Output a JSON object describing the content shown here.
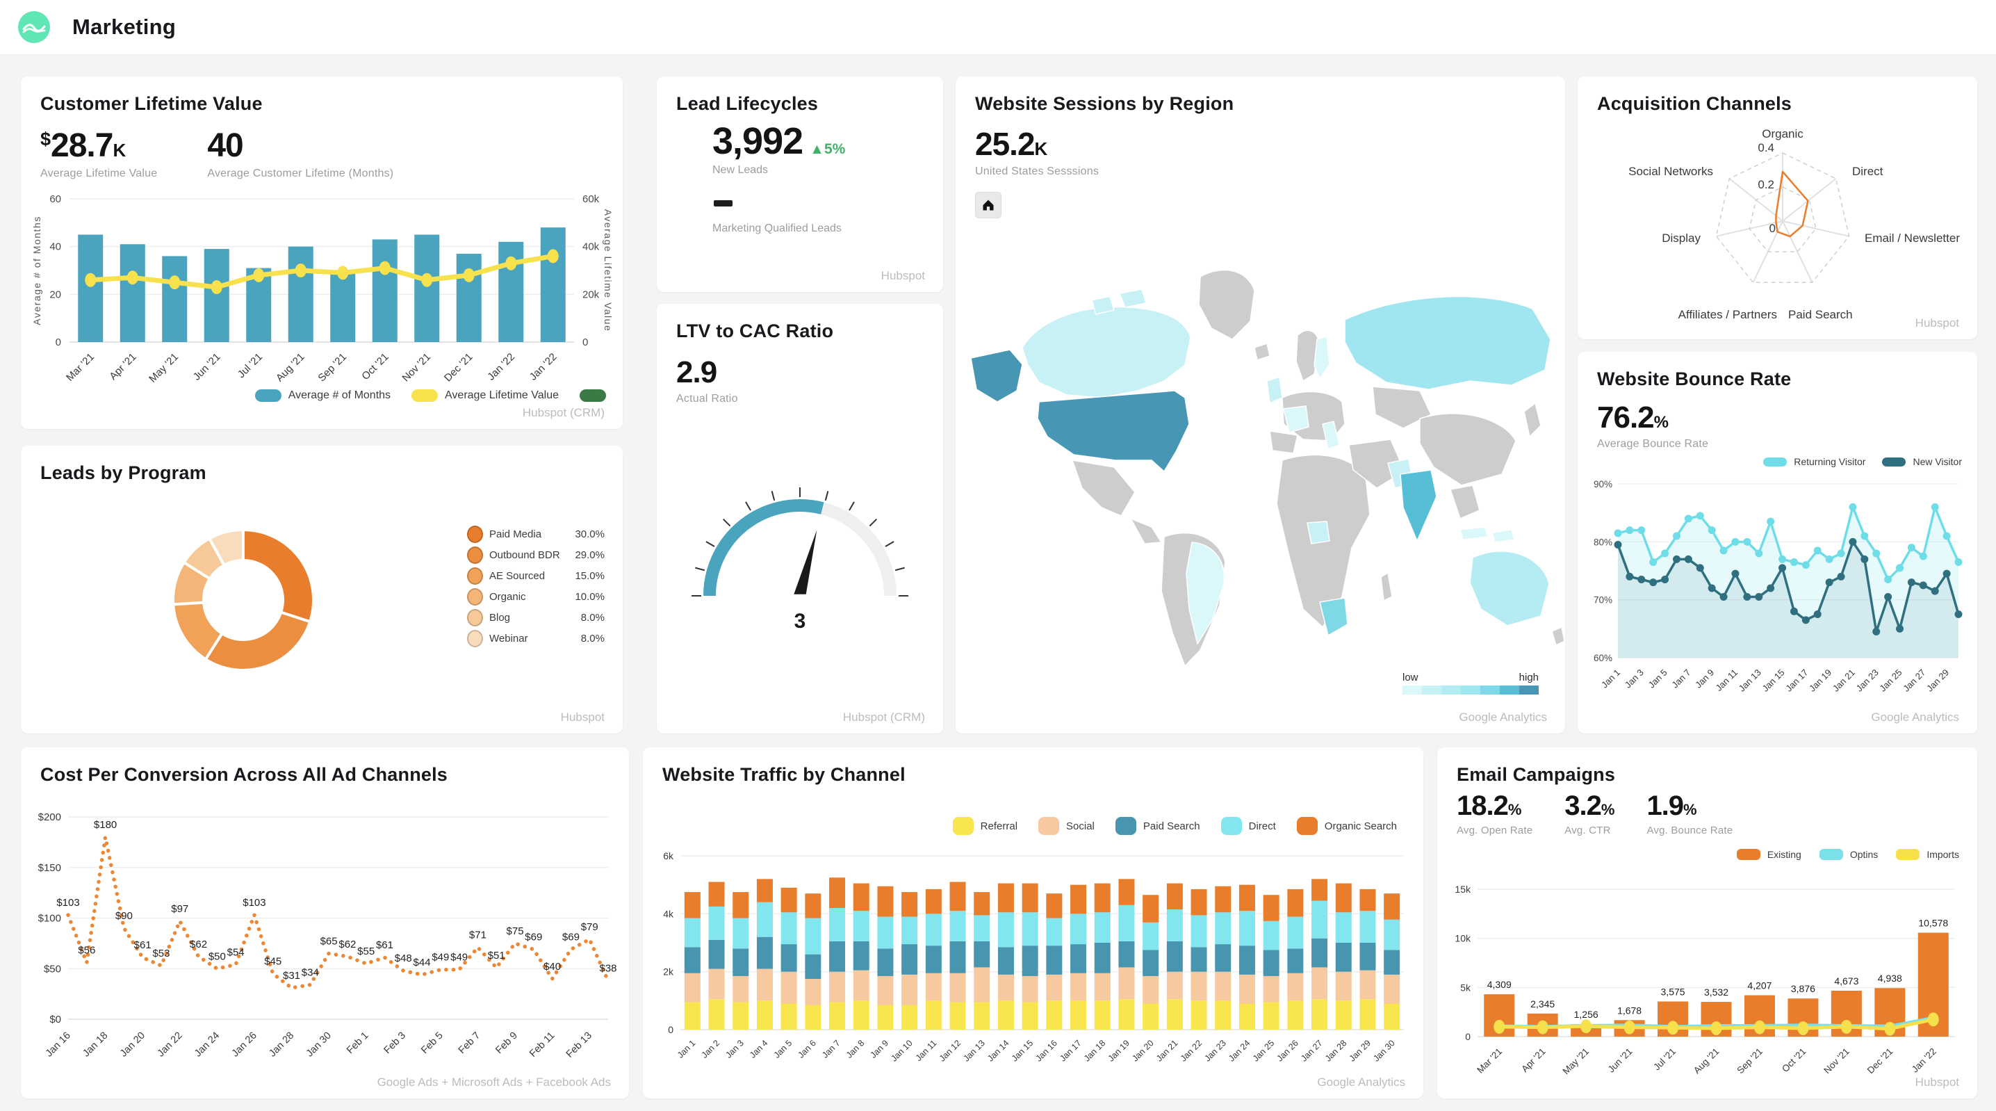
{
  "header": {
    "title": "Marketing"
  },
  "panels": {
    "clv": {
      "title": "Customer Lifetime Value",
      "kpis": [
        {
          "prefix": "$",
          "value": "28.7",
          "suffix": "K",
          "label": "Average Lifetime Value"
        },
        {
          "prefix": "",
          "value": "40",
          "suffix": "",
          "label": "Average Customer Lifetime (Months)"
        }
      ],
      "source": "Hubspot (CRM)"
    },
    "leads_program": {
      "title": "Leads by Program",
      "source": "Hubspot"
    },
    "lead_lifecycles": {
      "title": "Lead Lifecycles",
      "kpi": {
        "value": "3,992",
        "delta_icon": "▲",
        "delta": "5%",
        "label": "New Leads"
      },
      "mql_label": "Marketing Qualified Leads",
      "source": "Hubspot"
    },
    "ltv": {
      "title": "LTV to CAC Ratio",
      "kpi": {
        "value": "2.9",
        "label": "Actual Ratio"
      },
      "source": "Hubspot (CRM)"
    },
    "map": {
      "title": "Website Sessions by Region",
      "kpi": {
        "value": "25.2",
        "suffix": "K",
        "label": "United States Sesssions"
      },
      "legend": {
        "low": "low",
        "high": "high"
      },
      "source": "Google Analytics"
    },
    "acquisition": {
      "title": "Acquisition Channels",
      "source": "Hubspot"
    },
    "bounce": {
      "title": "Website Bounce Rate",
      "kpi": {
        "value": "76.2",
        "suffix": "%",
        "label": "Average Bounce Rate"
      },
      "source": "Google Analytics"
    },
    "cost": {
      "title": "Cost Per Conversion Across All Ad Channels",
      "source": "Google Ads + Microsoft Ads + Facebook Ads"
    },
    "traffic": {
      "title": "Website Traffic by Channel",
      "source": "Google Analytics"
    },
    "email": {
      "title": "Email Campaigns",
      "kpis": [
        {
          "value": "18.2",
          "suffix": "%",
          "label": "Avg. Open Rate"
        },
        {
          "value": "3.2",
          "suffix": "%",
          "label": "Avg. CTR"
        },
        {
          "value": "1.9",
          "suffix": "%",
          "label": "Avg. Bounce Rate"
        }
      ],
      "source": "Hubspot"
    }
  },
  "chart_data": [
    {
      "id": "clv",
      "type": "bar",
      "subtype": "bar+line dual axis",
      "title": "Customer Lifetime Value",
      "categories": [
        "Mar '21",
        "Apr '21",
        "May '21",
        "Jun '21",
        "Jul '21",
        "Aug '21",
        "Sep '21",
        "Oct '21",
        "Nov '21",
        "Dec '21",
        "Jan '22",
        "Jan '22"
      ],
      "series": [
        {
          "name": "Average # of Months",
          "type": "bar",
          "axis": "left",
          "color": "#4aa4be",
          "values": [
            45,
            41,
            36,
            39,
            31,
            40,
            30,
            43,
            45,
            37,
            42,
            48
          ]
        },
        {
          "name": "Average Lifetime Value",
          "type": "line",
          "axis": "right",
          "color": "#f7e14d",
          "values": [
            26000,
            27000,
            25000,
            23000,
            28000,
            30000,
            29000,
            31000,
            26000,
            28000,
            33000,
            36000
          ]
        },
        {
          "name": "",
          "type": "line",
          "axis": "right",
          "color": "#3c7a45",
          "values": []
        }
      ],
      "axes": {
        "left": {
          "label": "Average # of Months",
          "ticks": [
            "0",
            "20",
            "40",
            "60"
          ],
          "max": 60
        },
        "right": {
          "label": "Average Lifetime Value",
          "ticks": [
            "0",
            "20k",
            "40k",
            "60k"
          ],
          "max": 60000
        }
      },
      "legend_position": "bottom-right"
    },
    {
      "id": "leads_program",
      "type": "pie",
      "subtype": "donut",
      "title": "Leads by Program",
      "labels": [
        "Paid Media",
        "Outbound BDR",
        "AE Sourced",
        "Organic",
        "Blog",
        "Webinar"
      ],
      "values": [
        30.0,
        29.0,
        15.0,
        10.0,
        8.0,
        8.0
      ],
      "value_labels": [
        "30.0%",
        "29.0%",
        "15.0%",
        "10.0%",
        "8.0%",
        "8.0%"
      ],
      "colors": [
        "#e87d2b",
        "#eb8e3f",
        "#efa258",
        "#f3b678",
        "#f6c998",
        "#f9dcbb"
      ]
    },
    {
      "id": "ltv_gauge",
      "type": "gauge",
      "title": "LTV to CAC Ratio",
      "value": 2.9,
      "min": 0,
      "max": 5,
      "tick_label": "3",
      "color": "#4aa4be",
      "track_color": "#efefef"
    },
    {
      "id": "sessions_map",
      "type": "heatmap",
      "subtype": "world choropleth",
      "title": "Website Sessions by Region",
      "kpi": {
        "value": "25.2K",
        "label": "United States Sesssions"
      },
      "scale": {
        "low_label": "low",
        "high_label": "high",
        "colors": [
          "#daf7f9",
          "#c8f1f6",
          "#b5ecf3",
          "#9fe6f0",
          "#7fd8e5",
          "#57bfd5",
          "#4796b4"
        ]
      },
      "base_color": "#cdcdcd",
      "regions": {
        "united-states": "high",
        "alaska": "high",
        "canada": "low",
        "canada-islands-a": "low",
        "canada-islands-b": "low",
        "russia": "medium-low",
        "india": "medium",
        "south-africa": "medium-high-low",
        "australia": "low-medium",
        "brazil": "lowest",
        "sweden": "lowest",
        "france": "lowest",
        "italy": "lowest",
        "united-kingdom": "low",
        "nigeria": "low",
        "pakistan": "low",
        "indonesia": "lowest",
        "indonesia-b": "lowest"
      }
    },
    {
      "id": "acquisition",
      "type": "radar",
      "title": "Acquisition Channels",
      "axes": [
        "Organic",
        "Direct",
        "Email / Newsletter",
        "Paid Search",
        "Affiliates / Partners",
        "Display",
        "Social Networks"
      ],
      "values": [
        0.29,
        0.19,
        0.12,
        0.1,
        0.07,
        0.04,
        0.05
      ],
      "ticks": [
        "0",
        "0.2",
        "0.4"
      ],
      "max": 0.4,
      "color": "#e87d2b"
    },
    {
      "id": "bounce",
      "type": "line",
      "title": "Website Bounce Rate",
      "x": [
        "Jan 1",
        "Jan 2",
        "Jan 3",
        "Jan 4",
        "Jan 5",
        "Jan 6",
        "Jan 7",
        "Jan 8",
        "Jan 9",
        "Jan 10",
        "Jan 11",
        "Jan 12",
        "Jan 13",
        "Jan 14",
        "Jan 15",
        "Jan 16",
        "Jan 17",
        "Jan 18",
        "Jan 19",
        "Jan 20",
        "Jan 21",
        "Jan 22",
        "Jan 23",
        "Jan 24",
        "Jan 25",
        "Jan 26",
        "Jan 27",
        "Jan 28",
        "Jan 29",
        "Jan 30"
      ],
      "x_tick_every": 2,
      "ylim": [
        60,
        90
      ],
      "yticks": [
        "60%",
        "70%",
        "80%",
        "90%"
      ],
      "series": [
        {
          "name": "Returning Visitor",
          "color": "#6fdde7",
          "values": [
            81.5,
            82,
            82,
            76.5,
            78,
            81,
            84,
            84.5,
            82,
            78.5,
            80,
            80,
            78,
            83.5,
            77,
            76.5,
            76,
            78.5,
            77,
            78,
            86,
            81,
            78,
            73.5,
            75.5,
            79,
            77.5,
            86,
            81,
            76.5
          ]
        },
        {
          "name": "New Visitor",
          "color": "#2f6f7f",
          "values": [
            79.5,
            74,
            73.5,
            73,
            73.5,
            77,
            77,
            75.5,
            72,
            70.5,
            74.5,
            70.5,
            70.5,
            72,
            75.5,
            68,
            66.5,
            67.5,
            73,
            74,
            80,
            77,
            64.5,
            70.5,
            65,
            73,
            72.5,
            71.5,
            74.5,
            67.5
          ]
        }
      ]
    },
    {
      "id": "cost",
      "type": "line",
      "subtype": "dotted",
      "title": "Cost Per Conversion Across All Ad Channels",
      "color": "#ec8733",
      "x": [
        "Jan 16",
        "Jan 17",
        "Jan 18",
        "Jan 19",
        "Jan 20",
        "Jan 21",
        "Jan 22",
        "Jan 23",
        "Jan 24",
        "Jan 25",
        "Jan 26",
        "Jan 27",
        "Jan 28",
        "Jan 29",
        "Jan 30",
        "Jan 31",
        "Feb 1",
        "Feb 2",
        "Feb 3",
        "Feb 4",
        "Feb 5",
        "Feb 6",
        "Feb 7",
        "Feb 8",
        "Feb 9",
        "Feb 10",
        "Feb 11",
        "Feb 12",
        "Feb 13",
        "Feb 14"
      ],
      "x_tick_every": 2,
      "values": [
        103,
        56,
        180,
        90,
        61,
        53,
        97,
        62,
        50,
        54,
        103,
        45,
        31,
        34,
        65,
        62,
        55,
        61,
        48,
        44,
        49,
        49,
        71,
        51,
        75,
        69,
        40,
        69,
        79,
        38
      ],
      "point_labels": [
        "$103",
        "$56",
        "$180",
        "$90",
        "$61",
        "$53",
        "$97",
        "$62",
        "$50",
        "$54",
        "$103",
        "$45",
        "$31",
        "$34",
        "$65",
        "$62",
        "$55",
        "$61",
        "$48",
        "$44",
        "$49",
        "$49",
        "$71",
        "$51",
        "$75",
        "$69",
        "$40",
        "$69",
        "$79",
        "$38"
      ],
      "ylim": [
        0,
        200
      ],
      "yticks": [
        "$0",
        "$50",
        "$100",
        "$150",
        "$200"
      ]
    },
    {
      "id": "traffic",
      "type": "bar",
      "subtype": "stacked",
      "title": "Website Traffic by Channel",
      "x": [
        "Jan 1",
        "Jan 2",
        "Jan 3",
        "Jan 4",
        "Jan 5",
        "Jan 6",
        "Jan 7",
        "Jan 8",
        "Jan 9",
        "Jan 10",
        "Jan 11",
        "Jan 12",
        "Jan 13",
        "Jan 14",
        "Jan 15",
        "Jan 16",
        "Jan 17",
        "Jan 18",
        "Jan 19",
        "Jan 20",
        "Jan 21",
        "Jan 22",
        "Jan 23",
        "Jan 24",
        "Jan 25",
        "Jan 26",
        "Jan 27",
        "Jan 28",
        "Jan 29",
        "Jan 30"
      ],
      "ylim": [
        0,
        6000
      ],
      "yticks": [
        "0",
        "2k",
        "4k",
        "6k"
      ],
      "series": [
        {
          "name": "Referral",
          "color": "#f9e54e",
          "values": [
            950,
            1050,
            950,
            1000,
            900,
            850,
            950,
            1000,
            850,
            850,
            1000,
            950,
            950,
            1000,
            950,
            1000,
            1000,
            1000,
            1050,
            900,
            1050,
            1000,
            1000,
            900,
            950,
            1000,
            1050,
            1000,
            1050,
            900
          ]
        },
        {
          "name": "Social",
          "color": "#f7c9a0",
          "values": [
            1000,
            1050,
            900,
            1100,
            1100,
            900,
            1050,
            1050,
            1000,
            1050,
            950,
            1000,
            1200,
            900,
            900,
            900,
            950,
            950,
            1100,
            950,
            950,
            1000,
            1000,
            1000,
            900,
            950,
            1100,
            1000,
            1000,
            1000
          ]
        },
        {
          "name": "Paid Search",
          "color": "#4795ae",
          "values": [
            900,
            1000,
            950,
            1100,
            950,
            850,
            1050,
            1000,
            950,
            1050,
            950,
            1100,
            900,
            950,
            1050,
            1000,
            1000,
            1050,
            900,
            900,
            1050,
            850,
            950,
            1000,
            900,
            850,
            1000,
            1000,
            950,
            850
          ]
        },
        {
          "name": "Direct",
          "color": "#83e6ef",
          "values": [
            1000,
            1150,
            1050,
            1200,
            1100,
            1250,
            1150,
            1050,
            1100,
            950,
            1100,
            1050,
            900,
            1200,
            1150,
            950,
            1050,
            1050,
            1250,
            950,
            1100,
            1100,
            1100,
            1200,
            1000,
            1100,
            1300,
            1050,
            1100,
            1050
          ]
        },
        {
          "name": "Organic Search",
          "color": "#e87d2b",
          "values": [
            900,
            850,
            900,
            800,
            850,
            850,
            1050,
            950,
            1050,
            850,
            850,
            1000,
            800,
            1000,
            1000,
            850,
            1000,
            1000,
            900,
            950,
            900,
            900,
            900,
            900,
            900,
            950,
            750,
            1000,
            750,
            900
          ]
        }
      ]
    },
    {
      "id": "email",
      "type": "bar",
      "subtype": "bar+lines",
      "title": "Email Campaigns",
      "categories": [
        "Mar '21",
        "Apr '21",
        "May '21",
        "Jun '21",
        "Jul '21",
        "Aug '21",
        "Sep '21",
        "Oct '21",
        "Nov '21",
        "Dec '21",
        "Jan '22"
      ],
      "ylim": [
        0,
        15000
      ],
      "yticks": [
        "0",
        "5k",
        "10k",
        "15k"
      ],
      "series": [
        {
          "name": "Existing",
          "type": "bar",
          "color": "#e87d2b",
          "values": [
            4309,
            2345,
            1256,
            1678,
            3575,
            3532,
            4207,
            3876,
            4673,
            4938,
            10578
          ],
          "value_labels": [
            "4,309",
            "2,345",
            "1,256",
            "1,678",
            "3,575",
            "3,532",
            "4,207",
            "3,876",
            "4,673",
            "4,938",
            "10,578"
          ]
        },
        {
          "name": "Optins",
          "type": "line",
          "color": "#7ce0ea",
          "values": [
            1050,
            1000,
            1100,
            1150,
            1000,
            1100,
            1100,
            1150,
            1100,
            1050,
            1900
          ]
        },
        {
          "name": "Imports",
          "type": "line",
          "color": "#f6e14c",
          "values": [
            1000,
            950,
            1050,
            950,
            900,
            850,
            950,
            850,
            1000,
            800,
            1750
          ]
        }
      ]
    }
  ]
}
